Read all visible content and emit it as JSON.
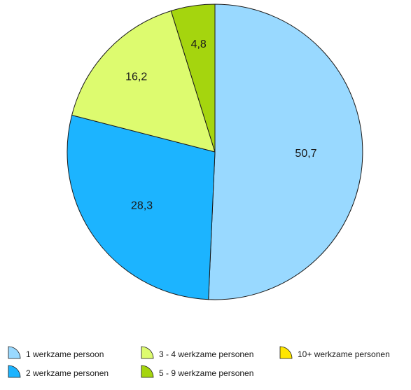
{
  "chart_data": {
    "type": "pie",
    "title": "",
    "start_angle_deg": 0,
    "direction": "clockwise",
    "slices": [
      {
        "label": "1 werkzame persoon",
        "value": 50.7,
        "value_label": "50,7",
        "color": "#99d9ff"
      },
      {
        "label": "2 werkzame personen",
        "value": 28.3,
        "value_label": "28,3",
        "color": "#1cb4ff"
      },
      {
        "label": "3 - 4 werkzame personen",
        "value": 16.2,
        "value_label": "16,2",
        "color": "#ddfb6f"
      },
      {
        "label": "5 - 9 werkzame personen",
        "value": 4.8,
        "value_label": "4,8",
        "color": "#a5d50e"
      },
      {
        "label": "10+ werkzame personen",
        "value": 0,
        "value_label": "",
        "color": "#ffe600"
      }
    ],
    "legend": {
      "placement": "bottom",
      "order": [
        "1 werkzame persoon",
        "3 - 4 werkzame personen",
        "10+ werkzame personen",
        "2 werkzame personen",
        "5 - 9 werkzame personen"
      ]
    }
  }
}
